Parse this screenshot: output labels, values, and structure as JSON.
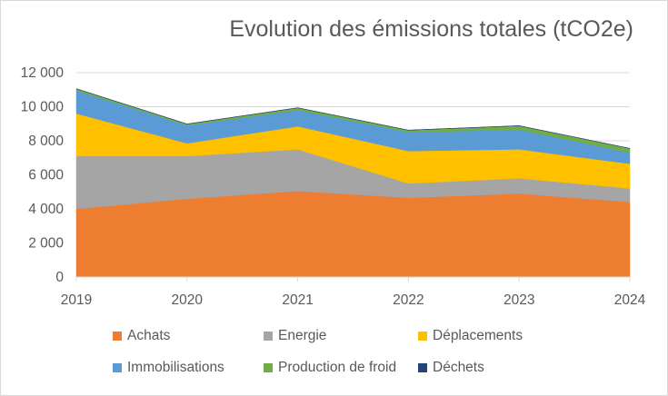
{
  "chart_data": {
    "type": "area",
    "stacked": true,
    "title": "Evolution des émissions totales (tCO2e)",
    "xlabel": "",
    "ylabel": "",
    "categories": [
      "2019",
      "2020",
      "2021",
      "2022",
      "2023",
      "2024"
    ],
    "ylim": [
      0,
      12000
    ],
    "yticks": [
      0,
      2000,
      4000,
      6000,
      8000,
      10000,
      12000
    ],
    "ytick_labels": [
      "0",
      "2 000",
      "4 000",
      "6 000",
      "8 000",
      "10 000",
      "12 000"
    ],
    "grid": true,
    "legend_position": "bottom",
    "series": [
      {
        "name": "Achats",
        "color": "#ED7D31",
        "values": [
          4000,
          4600,
          5050,
          4650,
          4900,
          4400
        ]
      },
      {
        "name": "Energie",
        "color": "#A5A5A5",
        "values": [
          3100,
          2500,
          2450,
          850,
          900,
          800
        ]
      },
      {
        "name": "Déplacements",
        "color": "#FFC000",
        "values": [
          2500,
          750,
          1350,
          1900,
          1700,
          1450
        ]
      },
      {
        "name": "Immobilisations",
        "color": "#5B9BD5",
        "values": [
          1350,
          1050,
          950,
          1100,
          1150,
          650
        ]
      },
      {
        "name": "Production de froid",
        "color": "#70AD47",
        "values": [
          100,
          80,
          130,
          120,
          230,
          250
        ]
      },
      {
        "name": "Déchets",
        "color": "#264478",
        "values": [
          10,
          10,
          10,
          10,
          10,
          10
        ]
      }
    ]
  }
}
